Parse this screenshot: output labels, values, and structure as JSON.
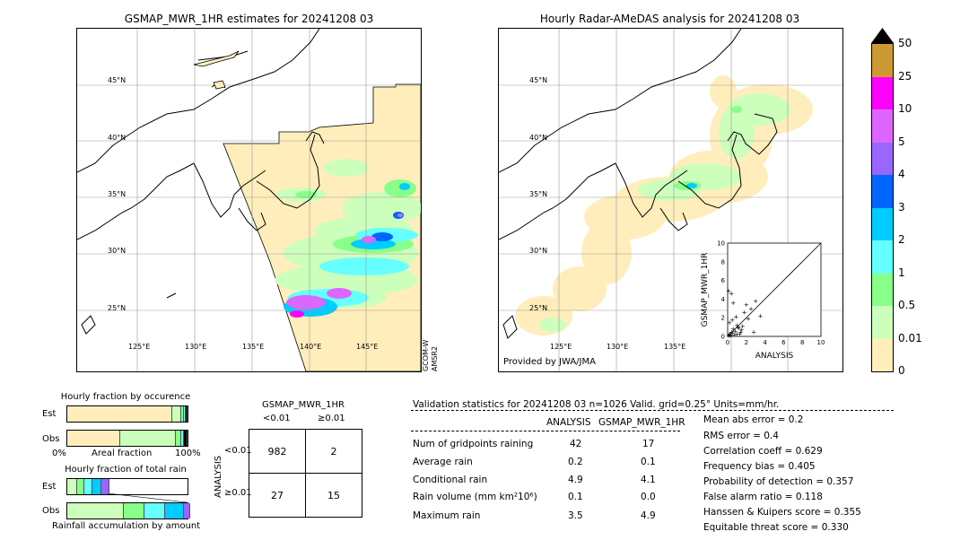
{
  "left_map": {
    "title": "GSMAP_MWR_1HR estimates for 20241208 03",
    "lat_labels": [
      "45°N",
      "40°N",
      "35°N",
      "30°N",
      "25°N"
    ],
    "lon_labels": [
      "125°E",
      "130°E",
      "135°E",
      "140°E",
      "145°E"
    ],
    "side_label_1": "GCOM-W",
    "side_label_2": "AMSR2"
  },
  "right_map": {
    "title": "Hourly Radar-AMeDAS analysis for 20241208 03",
    "lat_labels": [
      "45°N",
      "40°N",
      "35°N",
      "30°N",
      "25°N"
    ],
    "lon_labels": [
      "125°E",
      "130°E",
      "135°E"
    ],
    "credit": "Provided by JWA/JMA"
  },
  "colorbar": {
    "labels": [
      "50",
      "25",
      "10",
      "5",
      "4",
      "3",
      "2",
      "1",
      "0.5",
      "0.01",
      "0"
    ],
    "colors": [
      "#cc9933",
      "#ff00ff",
      "#dd66ff",
      "#9966ff",
      "#0066ff",
      "#00ccff",
      "#66ffff",
      "#88ff88",
      "#ccffbb",
      "#ffeebb"
    ]
  },
  "chart_data": [
    {
      "type": "scatter",
      "xlabel": "ANALYSIS",
      "ylabel": "GSMAP_MWR_1HR",
      "xlim": [
        0,
        10
      ],
      "ylim": [
        0,
        10
      ],
      "ticks": [
        "0",
        "2",
        "4",
        "6",
        "8",
        "10"
      ],
      "x": [
        0.1,
        0.2,
        0.3,
        0.4,
        0.5,
        0.6,
        0.8,
        1.0,
        1.2,
        1.5,
        0.2,
        0.5,
        0.9,
        1.1,
        1.4,
        1.8,
        2.0,
        2.5,
        3.0,
        3.5,
        0.3,
        0.7,
        1.0,
        1.6,
        2.2,
        0.4,
        0.1,
        0.6,
        1.3,
        2.8
      ],
      "y": [
        0.1,
        0.3,
        0.2,
        0.5,
        0.4,
        0.8,
        0.6,
        1.2,
        0.9,
        0.7,
        1.5,
        1.8,
        2.1,
        1.0,
        0.5,
        2.6,
        3.4,
        3.0,
        3.8,
        2.2,
        0.1,
        0.2,
        0.3,
        1.1,
        1.9,
        4.6,
        4.9,
        3.6,
        0.3,
        0.5
      ]
    },
    {
      "type": "bar",
      "title": "Hourly fraction by occurence",
      "categories": [
        "Est",
        "Obs"
      ],
      "xlabel": "Areal fraction",
      "x_ticks": [
        "0%",
        "100%"
      ],
      "series": [
        {
          "name": "0",
          "values": [
            0.87,
            0.44
          ]
        },
        {
          "name": "0.01",
          "values": [
            0.08,
            0.46
          ]
        },
        {
          "name": "0.5",
          "values": [
            0.02,
            0.05
          ]
        },
        {
          "name": "1",
          "values": [
            0.015,
            0.02
          ]
        },
        {
          "name": "2+",
          "values": [
            0.015,
            0.03
          ]
        }
      ]
    },
    {
      "type": "bar",
      "title": "Hourly fraction of total rain",
      "categories": [
        "Est",
        "Obs"
      ],
      "xlabel": "Rainfall accumulation by amount",
      "series": [
        {
          "name": "0.01",
          "values": [
            0.08,
            0.47
          ]
        },
        {
          "name": "0.5",
          "values": [
            0.06,
            0.17
          ]
        },
        {
          "name": "1",
          "values": [
            0.07,
            0.17
          ]
        },
        {
          "name": "2",
          "values": [
            0.07,
            0.16
          ]
        },
        {
          "name": "3",
          "values": [
            0.07,
            0.05
          ]
        }
      ]
    }
  ],
  "contingency": {
    "title": "GSMAP_MWR_1HR",
    "col1": "<0.01",
    "col2": "≥0.01",
    "row_axis": "ANALYSIS",
    "row1": "<0.01",
    "row2": "≥0.01",
    "cells": [
      "982",
      "2",
      "27",
      "15"
    ]
  },
  "validation": {
    "header": "Validation statistics for 20241208 03  n=1026 Valid. grid=0.25° Units=mm/hr.",
    "col_analysis": "ANALYSIS",
    "col_gsmap": "GSMAP_MWR_1HR",
    "rows": [
      {
        "label": "Num of gridpoints raining",
        "a": "42",
        "g": "17"
      },
      {
        "label": "Average rain",
        "a": "0.2",
        "g": "0.1"
      },
      {
        "label": "Conditional rain",
        "a": "4.9",
        "g": "4.1"
      },
      {
        "label": "Rain volume (mm km²10⁶)",
        "a": "0.1",
        "g": "0.0"
      },
      {
        "label": "Maximum rain",
        "a": "3.5",
        "g": "4.9"
      }
    ],
    "scores": [
      "Mean abs error =    0.2",
      "RMS error =    0.4",
      "Correlation coeff =  0.629",
      "Frequency bias =  0.405",
      "Probability of detection =  0.357",
      "False alarm ratio =  0.118",
      "Hanssen & Kuipers score =  0.355",
      "Equitable threat score =  0.330"
    ]
  }
}
